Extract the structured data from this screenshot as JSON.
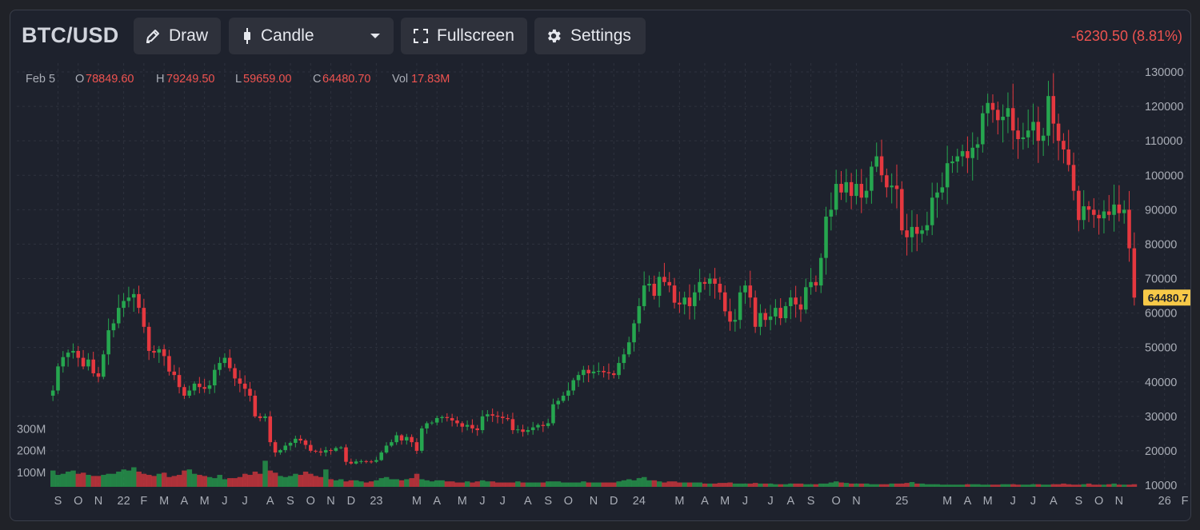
{
  "header": {
    "symbol": "BTC/USD",
    "draw_label": "Draw",
    "chart_type_label": "Candle",
    "fullscreen_label": "Fullscreen",
    "settings_label": "Settings",
    "change_text": "-6230.50 (8.81%)",
    "change_color": "#ef5350"
  },
  "legend": {
    "date": "Feb 5",
    "open_label": "O",
    "open": "78849.60",
    "high_label": "H",
    "high": "79249.50",
    "low_label": "L",
    "low": "59659.00",
    "close_label": "C",
    "close": "64480.70",
    "vol_label": "Vol",
    "vol": "17.83M"
  },
  "icons": {
    "draw": "pencil-icon",
    "chart_type": "candle-icon",
    "dropdown": "caret-down-icon",
    "fullscreen": "fullscreen-icon",
    "settings": "gear-icon"
  },
  "colors": {
    "up": "#26a64f",
    "down": "#e5383f",
    "price_tag": "#f7c948",
    "background": "#1e222d"
  },
  "chart_data": {
    "type": "candlestick",
    "current_price": 64480.7,
    "price_tag_label": "64480.7",
    "y_axis": {
      "min": 10000,
      "max": 130000,
      "ticks": [
        130000,
        120000,
        110000,
        100000,
        90000,
        80000,
        70000,
        60000,
        50000,
        40000,
        30000,
        20000,
        10000
      ],
      "tick_labels": [
        "130000",
        "120000",
        "110000",
        "100000",
        "90000",
        "80000",
        "70000",
        "60000",
        "50000",
        "40000",
        "30000",
        "20000",
        "10000"
      ]
    },
    "volume_axis": {
      "tick_labels": [
        "300M",
        "200M",
        "100M"
      ],
      "ticks": [
        300,
        200,
        100
      ],
      "max": 380
    },
    "x_axis": {
      "tick_labels": [
        "S",
        "O",
        "N",
        "22",
        "F",
        "M",
        "A",
        "M",
        "J",
        "J",
        "A",
        "S",
        "O",
        "N",
        "D",
        "23",
        "M",
        "A",
        "M",
        "J",
        "J",
        "A",
        "S",
        "O",
        "N",
        "D",
        "24",
        "M",
        "A",
        "M",
        "J",
        "J",
        "A",
        "S",
        "O",
        "N",
        "25",
        "M",
        "A",
        "M",
        "J",
        "J",
        "A",
        "S",
        "O",
        "N",
        "26",
        "F"
      ],
      "tick_index": [
        1,
        5,
        9,
        14,
        18,
        22,
        26,
        30,
        34,
        38,
        43,
        47,
        51,
        55,
        59,
        64,
        72,
        76,
        81,
        85,
        89,
        94,
        98,
        102,
        107,
        111,
        116,
        124,
        129,
        133,
        137,
        142,
        146,
        150,
        155,
        159,
        168,
        177,
        181,
        185,
        190,
        194,
        198,
        203,
        207,
        211,
        220,
        224
      ]
    },
    "grid": true,
    "series": [
      {
        "name": "price",
        "weekly_close": [
          37500,
          44500,
          47200,
          48500,
          49000,
          47000,
          44500,
          46500,
          42500,
          41500,
          48000,
          55000,
          57000,
          61500,
          63500,
          64500,
          65500,
          61500,
          56000,
          49000,
          48500,
          49500,
          47500,
          43000,
          42000,
          38500,
          36000,
          37500,
          39500,
          38500,
          38000,
          39000,
          43500,
          45500,
          47000,
          44000,
          41000,
          39500,
          38000,
          36000,
          30000,
          29500,
          30000,
          22500,
          19500,
          20200,
          21500,
          22300,
          23500,
          23000,
          21700,
          20000,
          19800,
          19500,
          20200,
          20000,
          20800,
          21000,
          16800,
          16300,
          16900,
          17000,
          16900,
          16800,
          17300,
          19500,
          21500,
          22500,
          24500,
          23000,
          24000,
          22500,
          20000,
          26500,
          28000,
          28200,
          29500,
          29800,
          29500,
          28800,
          28000,
          27000,
          27500,
          26500,
          26000,
          30000,
          30600,
          30200,
          29900,
          29500,
          29200,
          26000,
          26200,
          25500,
          26000,
          26800,
          27500,
          27200,
          28000,
          33500,
          34500,
          36000,
          37500,
          40500,
          42000,
          43500,
          42500,
          43000,
          43200,
          42800,
          42500,
          42000,
          45500,
          48000,
          51500,
          57000,
          62000,
          68000,
          68500,
          65000,
          70500,
          69000,
          68000,
          63000,
          62500,
          64500,
          62000,
          66000,
          69000,
          68500,
          70000,
          68500,
          66000,
          60500,
          57500,
          58000,
          66000,
          68000,
          64500,
          56000,
          60000,
          58000,
          59000,
          61500,
          58500,
          62000,
          64500,
          62500,
          61000,
          67500,
          69000,
          68000,
          76000,
          88000,
          90000,
          97500,
          95000,
          98000,
          94000,
          97500,
          93500,
          95500,
          102500,
          105500,
          100000,
          96500,
          97000,
          96000,
          84000,
          82000,
          85000,
          83000,
          84000,
          85500,
          93500,
          95000,
          96500,
          103500,
          104000,
          105500,
          107000,
          105000,
          108000,
          109000,
          118000,
          121000,
          119000,
          116000,
          117000,
          119500,
          113000,
          110500,
          111000,
          113000,
          115500,
          110000,
          111500,
          123000,
          115000,
          110000,
          107500,
          103000,
          95500,
          87000,
          91000,
          90000,
          88500,
          87500,
          89500,
          88500,
          91500,
          89000,
          90000,
          78800,
          64480.7
        ]
      },
      {
        "name": "volume",
        "values": [
          75,
          55,
          60,
          70,
          75,
          60,
          65,
          55,
          50,
          50,
          55,
          60,
          60,
          70,
          80,
          75,
          90,
          70,
          60,
          55,
          50,
          60,
          65,
          45,
          50,
          55,
          75,
          80,
          60,
          55,
          50,
          45,
          40,
          55,
          35,
          40,
          40,
          45,
          60,
          55,
          70,
          60,
          120,
          75,
          65,
          50,
          45,
          50,
          60,
          55,
          70,
          60,
          50,
          45,
          80,
          35,
          30,
          35,
          25,
          30,
          30,
          25,
          20,
          25,
          30,
          40,
          45,
          35,
          35,
          30,
          35,
          40,
          60,
          35,
          30,
          25,
          30,
          30,
          25,
          25,
          20,
          20,
          25,
          20,
          25,
          30,
          25,
          25,
          20,
          20,
          20,
          20,
          25,
          20,
          20,
          20,
          20,
          20,
          25,
          25,
          25,
          20,
          20,
          20,
          20,
          25,
          20,
          20,
          20,
          20,
          20,
          20,
          25,
          30,
          35,
          30,
          40,
          45,
          30,
          30,
          25,
          20,
          25,
          25,
          20,
          20,
          20,
          20,
          20,
          15,
          15,
          15,
          18,
          18,
          20,
          15,
          15,
          15,
          15,
          18,
          15,
          15,
          15,
          12,
          12,
          12,
          15,
          15,
          15,
          12,
          12,
          12,
          15,
          15,
          20,
          25,
          20,
          18,
          15,
          15,
          15,
          15,
          12,
          12,
          12,
          12,
          15,
          15,
          15,
          18,
          22,
          15,
          15,
          12,
          12,
          12,
          10,
          10,
          10,
          10,
          10,
          12,
          12,
          12,
          10,
          10,
          10,
          10,
          12,
          12,
          12,
          10,
          10,
          10,
          12,
          12,
          10,
          10,
          12,
          12,
          15,
          12,
          10,
          10,
          12,
          15,
          10,
          10,
          10,
          12,
          15,
          10,
          10,
          10,
          12,
          12,
          15,
          10,
          18
        ]
      }
    ]
  }
}
